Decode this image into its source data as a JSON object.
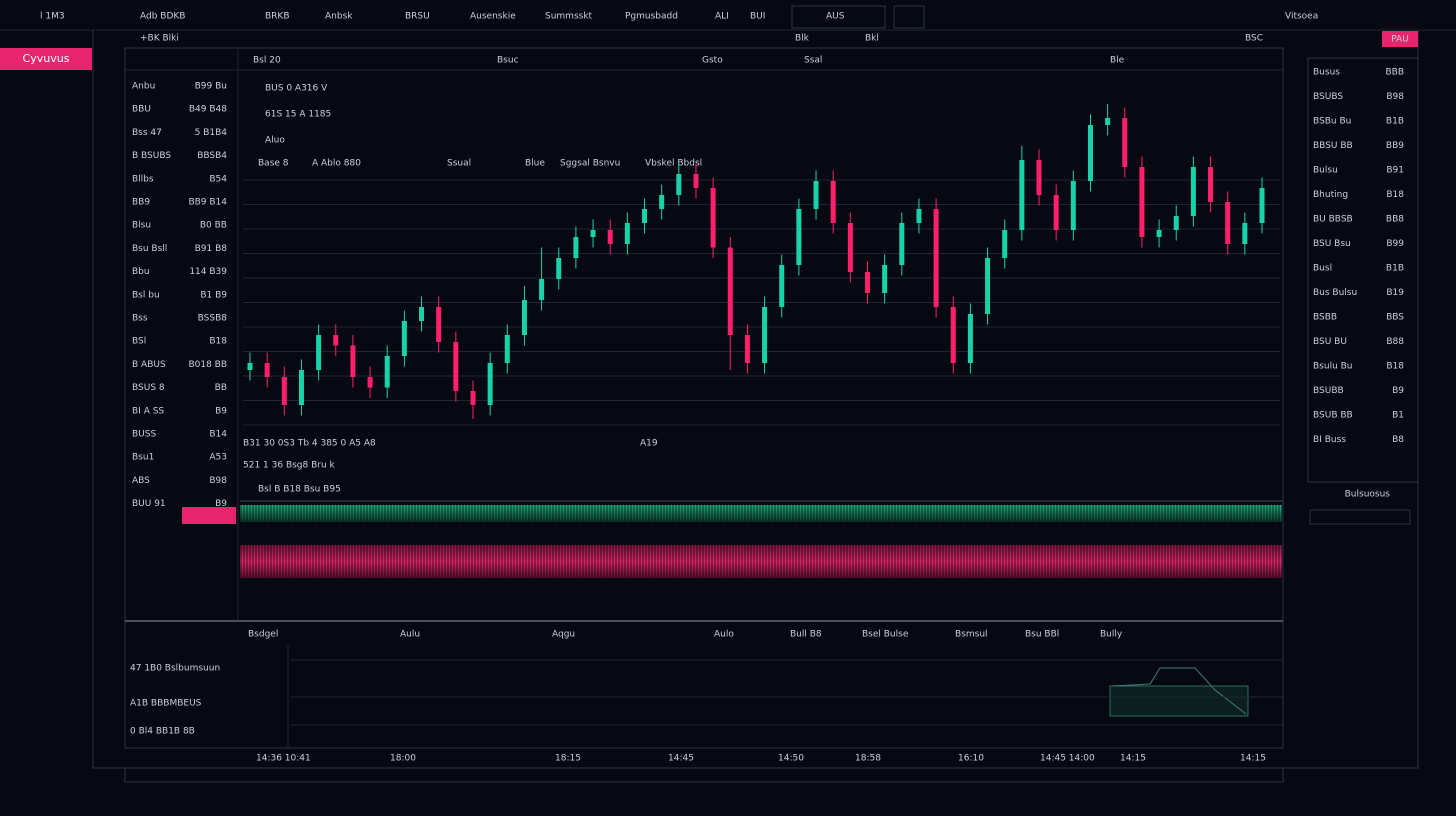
{
  "nav": {
    "items": [
      "l 1M3",
      "Adb BDKB",
      "BRKB",
      "Anbsk",
      "BRSU",
      "Ausenskie",
      "Summsskt",
      "Pgmusbadd",
      "ALI",
      "BUI",
      "AUS",
      "Vitsoea"
    ]
  },
  "brand": "Cyvuvus",
  "toolbar": [
    "+BK Blki",
    "Blk",
    "Bkl",
    "BSC"
  ],
  "chart_header": [
    "Bsl 20",
    "Bsuc",
    "Gsto",
    "Ssal",
    "Ble"
  ],
  "chart_legend": [
    "BUS 0 A316 V",
    "61S 15 A 1185",
    "Aluo"
  ],
  "indicators": [
    "Base 8",
    "A Ablo 880",
    "Ssual",
    "Blue",
    "Sggsal Bsnvu",
    "Vbskel Bbdsl"
  ],
  "chart_footer": [
    "B31 30 0S3 Tb 4 385 0 A5 A8",
    "A19",
    "521 1 36 Bsg8 Bru k",
    "Bsl B B18 Bsu B95"
  ],
  "watchlist": {
    "rows": [
      {
        "name": "Anbu",
        "value": "B99 Bu",
        "color": "#ff2a6d"
      },
      {
        "name": "BBU",
        "value": "B49 B48",
        "color": "#ff2a6d"
      },
      {
        "name": "Bss 47",
        "value": "5 B1B4",
        "color": "#ff2a6d"
      },
      {
        "name": "B BSUBS",
        "value": "BBSB4",
        "color": "#ff2a6d"
      },
      {
        "name": "Bllbs",
        "value": "B54",
        "color": "#ff2a6d"
      },
      {
        "name": "BB9",
        "value": "BB9 B14",
        "color": "#ff2a6d"
      },
      {
        "name": "Blsu",
        "value": "B0 BB",
        "color": "#ff2a6d"
      },
      {
        "name": "Bsu Bsll",
        "value": "B91 B8",
        "color": "#ff2a6d"
      },
      {
        "name": "Bbu",
        "value": "114 B39",
        "color": "#ff2a6d"
      },
      {
        "name": "Bsl bu",
        "value": "B1 B9",
        "color": "#ff2a6d"
      },
      {
        "name": "Bss",
        "value": "BSSB8",
        "color": "#ff2a6d"
      },
      {
        "name": "BSl",
        "value": "B18",
        "color": "#ff2a6d"
      },
      {
        "name": "B ABUS",
        "value": "B018 BB",
        "color": "#19d3a8"
      },
      {
        "name": "BSUS 8",
        "value": "BB",
        "color": "#c9d1dc"
      },
      {
        "name": "BI A SS",
        "value": "B9",
        "color": "#19d3a8"
      },
      {
        "name": "BUSS",
        "value": "B14",
        "color": "#ff2a6d"
      },
      {
        "name": "Bsu1",
        "value": "A53",
        "color": "#ff2a6d"
      },
      {
        "name": "ABS",
        "value": "B98",
        "color": "#ff2a6d"
      },
      {
        "name": "BUU 91",
        "value": "B9",
        "color": "#19d3a8"
      }
    ]
  },
  "sidebar": {
    "rows": [
      {
        "name": "Busus",
        "value": "BBB"
      },
      {
        "name": "BSUBS",
        "value": "B98"
      },
      {
        "name": "BSBu Bu",
        "value": "B1B"
      },
      {
        "name": "BBSU BB",
        "value": "BB9"
      },
      {
        "name": "Bulsu",
        "value": "B91"
      },
      {
        "name": "Bhuting",
        "value": "B18"
      },
      {
        "name": "BU BBSB",
        "value": "BB8"
      },
      {
        "name": "BSU Bsu",
        "value": "B99"
      },
      {
        "name": "Busl",
        "value": "B1B"
      },
      {
        "name": "Bus Bulsu",
        "value": "B19"
      },
      {
        "name": "BSBB",
        "value": "BBS"
      },
      {
        "name": "BSU BU",
        "value": "B88"
      },
      {
        "name": "Bsulu Bu",
        "value": "B18"
      },
      {
        "name": "BSUBB",
        "value": "B9"
      },
      {
        "name": "BSUB BB",
        "value": "B1"
      },
      {
        "name": "BI Buss",
        "value": "B8"
      }
    ],
    "button": "PAU",
    "footer": "Bulsuosus"
  },
  "chart_data": {
    "type": "candlestick",
    "up_color": "#19d3a8",
    "down_color": "#ff1f6b",
    "ylim": [
      0,
      100
    ],
    "open": [
      20,
      22,
      18,
      10,
      20,
      30,
      27,
      18,
      15,
      24,
      34,
      38,
      28,
      14,
      10,
      22,
      30,
      40,
      46,
      52,
      58,
      60,
      56,
      62,
      66,
      70,
      76,
      72,
      55,
      30,
      22,
      38,
      50,
      66,
      74,
      62,
      48,
      42,
      50,
      62,
      66,
      38,
      22,
      36,
      52,
      60,
      80,
      70,
      60,
      74,
      90,
      92,
      78,
      58,
      60,
      64,
      78,
      68,
      56,
      62
    ],
    "high": [
      25,
      25,
      21,
      23,
      33,
      33,
      30,
      21,
      27,
      37,
      41,
      41,
      31,
      17,
      25,
      33,
      44,
      55,
      55,
      61,
      63,
      63,
      65,
      69,
      73,
      79,
      79,
      75,
      58,
      33,
      41,
      53,
      69,
      77,
      77,
      65,
      51,
      53,
      65,
      69,
      69,
      41,
      39,
      55,
      63,
      84,
      83,
      73,
      77,
      93,
      96,
      95,
      81,
      63,
      67,
      81,
      81,
      71,
      65,
      75
    ],
    "low": [
      17,
      15,
      7,
      7,
      17,
      24,
      15,
      12,
      12,
      21,
      31,
      25,
      11,
      6,
      7,
      19,
      27,
      37,
      43,
      49,
      55,
      53,
      53,
      59,
      63,
      67,
      69,
      52,
      20,
      19,
      19,
      35,
      47,
      63,
      59,
      45,
      39,
      39,
      47,
      59,
      35,
      19,
      19,
      33,
      49,
      57,
      67,
      57,
      57,
      71,
      87,
      75,
      55,
      55,
      57,
      61,
      65,
      53,
      53,
      59
    ],
    "close": [
      22,
      18,
      10,
      20,
      30,
      27,
      18,
      15,
      24,
      34,
      38,
      28,
      14,
      10,
      22,
      30,
      40,
      46,
      52,
      58,
      60,
      56,
      62,
      66,
      70,
      76,
      72,
      55,
      30,
      22,
      38,
      50,
      66,
      74,
      62,
      48,
      42,
      50,
      62,
      66,
      38,
      22,
      36,
      52,
      60,
      80,
      70,
      60,
      74,
      90,
      92,
      78,
      58,
      60,
      64,
      78,
      68,
      56,
      62,
      72
    ]
  },
  "bottom": {
    "headers": [
      "Bsdgel",
      "Aulu",
      "Aqgu",
      "Aulo",
      "Bull B8",
      "Bsel Bulse",
      "Bsmsul",
      "Bsu BBl",
      "Bully"
    ],
    "rows": [
      "47 1B0 Bslbumsuun",
      "A1B BBBMBEUS",
      "0 Bl4 BB1B 8B"
    ]
  },
  "time_axis": [
    "14:36 10:41",
    "18:00",
    "18:15",
    "14:45",
    "14:50",
    "18:58",
    "16:10",
    "14:45 14:00",
    "14:15",
    "14:15"
  ]
}
